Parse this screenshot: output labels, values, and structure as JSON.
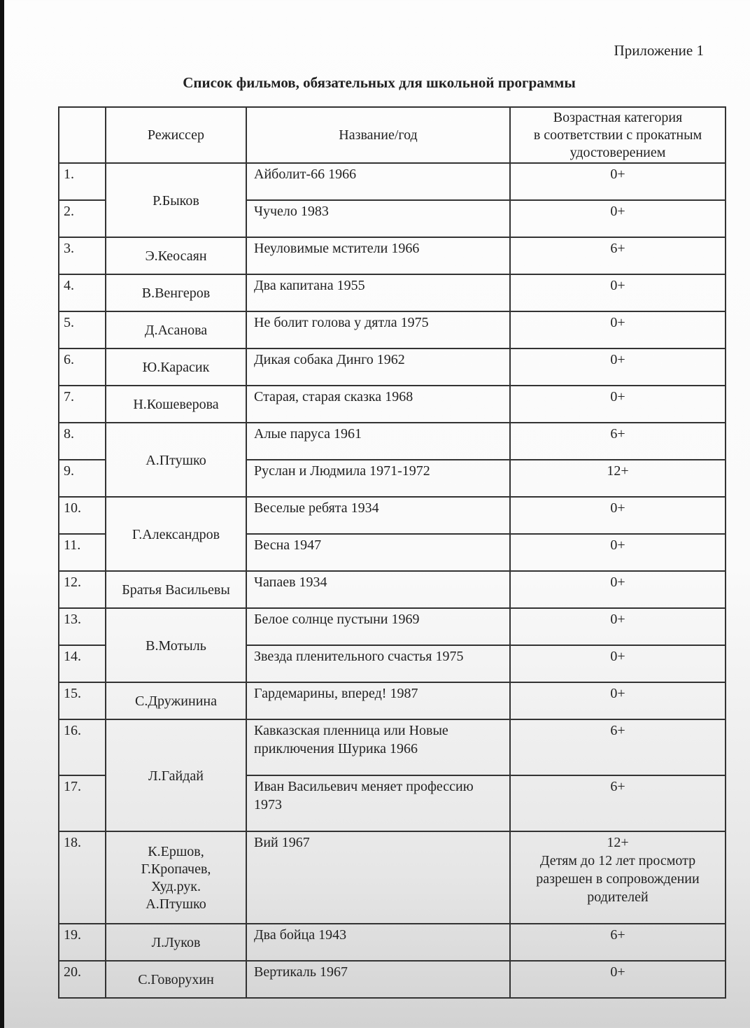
{
  "header": {
    "appendix": "Приложение 1",
    "title": "Список фильмов, обязательных для школьной программы"
  },
  "table": {
    "columns": {
      "director": "Режиссер",
      "title": "Название/год",
      "age": [
        "Возрастная категория",
        "в соответствии с прокатным",
        "удостоверением"
      ]
    },
    "groups": [
      {
        "director": [
          "Р.Быков"
        ],
        "films": [
          {
            "num": "1.",
            "title": "Айболит-66 1966",
            "age": "0+"
          },
          {
            "num": "2.",
            "title": "Чучело 1983",
            "age": "0+"
          }
        ]
      },
      {
        "director": [
          "Э.Кеосаян"
        ],
        "films": [
          {
            "num": "3.",
            "title": "Неуловимые мстители 1966",
            "age": "6+"
          }
        ]
      },
      {
        "director": [
          "В.Венгеров"
        ],
        "films": [
          {
            "num": "4.",
            "title": "Два капитана 1955",
            "age": "0+"
          }
        ]
      },
      {
        "director": [
          "Д.Асанова"
        ],
        "films": [
          {
            "num": "5.",
            "title": "Не болит голова у дятла 1975",
            "age": "0+"
          }
        ]
      },
      {
        "director": [
          "Ю.Карасик"
        ],
        "films": [
          {
            "num": "6.",
            "title": "Дикая собака Динго 1962",
            "age": "0+"
          }
        ]
      },
      {
        "director": [
          "Н.Кошеверова"
        ],
        "films": [
          {
            "num": "7.",
            "title": "Старая, старая сказка 1968",
            "age": "0+"
          }
        ]
      },
      {
        "director": [
          "А.Птушко"
        ],
        "films": [
          {
            "num": "8.",
            "title": "Алые паруса 1961",
            "age": "6+"
          },
          {
            "num": "9.",
            "title": "Руслан и Людмила 1971-1972",
            "age": "12+"
          }
        ]
      },
      {
        "director": [
          "Г.Александров"
        ],
        "films": [
          {
            "num": "10.",
            "title": "Веселые ребята 1934",
            "age": "0+"
          },
          {
            "num": "11.",
            "title": "Весна 1947",
            "age": "0+"
          }
        ]
      },
      {
        "director": [
          "Братья Васильевы"
        ],
        "films": [
          {
            "num": "12.",
            "title": "Чапаев 1934",
            "age": "0+"
          }
        ]
      },
      {
        "director": [
          "В.Мотыль"
        ],
        "films": [
          {
            "num": "13.",
            "title": "Белое солнце пустыни 1969",
            "age": "0+"
          },
          {
            "num": "14.",
            "title": "Звезда пленительного счастья 1975",
            "age": "0+"
          }
        ]
      },
      {
        "director": [
          "С.Дружинина"
        ],
        "films": [
          {
            "num": "15.",
            "title": "Гардемарины, вперед! 1987",
            "age": "0+"
          }
        ]
      },
      {
        "director": [
          "Л.Гайдай"
        ],
        "films": [
          {
            "num": "16.",
            "title": "Кавказская пленница или Новые приключения Шурика 1966",
            "age": "6+"
          },
          {
            "num": "17.",
            "title": "Иван Васильевич меняет профессию 1973",
            "age": "6+"
          }
        ]
      },
      {
        "director": [
          "К.Ершов,",
          "Г.Кропачев,",
          "Худ.рук.",
          "А.Птушко"
        ],
        "films": [
          {
            "num": "18.",
            "title": "Вий 1967",
            "age": "12+",
            "note": "Детям до 12 лет просмотр разрешен в сопровождении родителей"
          }
        ]
      },
      {
        "director": [
          "Л.Луков"
        ],
        "films": [
          {
            "num": "19.",
            "title": "Два бойца 1943",
            "age": "6+"
          }
        ]
      },
      {
        "director": [
          "С.Говорухин"
        ],
        "films": [
          {
            "num": "20.",
            "title": "Вертикаль 1967",
            "age": "0+"
          }
        ]
      }
    ]
  }
}
